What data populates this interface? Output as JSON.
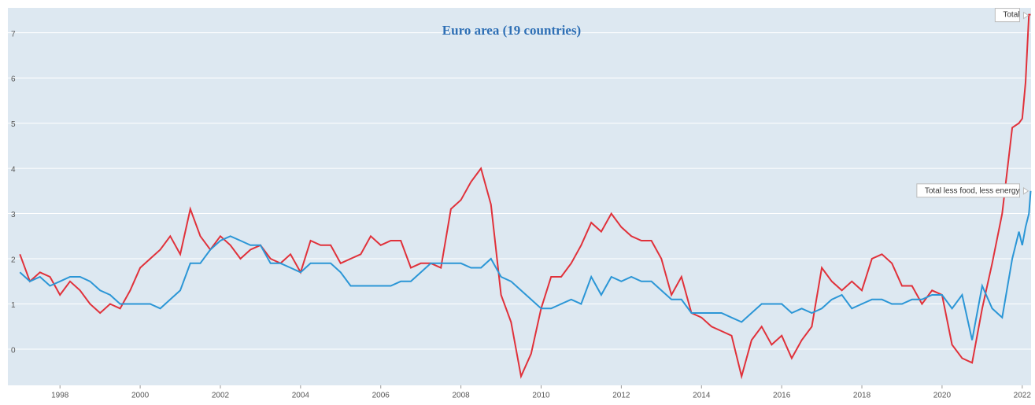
{
  "chart_data": {
    "type": "line",
    "title": "Euro area (19 countries)",
    "x": [
      1997,
      1997.25,
      1997.5,
      1997.75,
      1998,
      1998.25,
      1998.5,
      1998.75,
      1999,
      1999.25,
      1999.5,
      1999.75,
      2000,
      2000.25,
      2000.5,
      2000.75,
      2001,
      2001.25,
      2001.5,
      2001.75,
      2002,
      2002.25,
      2002.5,
      2002.75,
      2003,
      2003.25,
      2003.5,
      2003.75,
      2004,
      2004.25,
      2004.5,
      2004.75,
      2005,
      2005.25,
      2005.5,
      2005.75,
      2006,
      2006.25,
      2006.5,
      2006.75,
      2007,
      2007.25,
      2007.5,
      2007.75,
      2008,
      2008.25,
      2008.5,
      2008.75,
      2009,
      2009.25,
      2009.5,
      2009.75,
      2010,
      2010.25,
      2010.5,
      2010.75,
      2011,
      2011.25,
      2011.5,
      2011.75,
      2012,
      2012.25,
      2012.5,
      2012.75,
      2013,
      2013.25,
      2013.5,
      2013.75,
      2014,
      2014.25,
      2014.5,
      2014.75,
      2015,
      2015.25,
      2015.5,
      2015.75,
      2016,
      2016.25,
      2016.5,
      2016.75,
      2017,
      2017.25,
      2017.5,
      2017.75,
      2018,
      2018.25,
      2018.5,
      2018.75,
      2019,
      2019.25,
      2019.5,
      2019.75,
      2020,
      2020.25,
      2020.5,
      2020.75,
      2021,
      2021.25,
      2021.5,
      2021.75,
      2021.917,
      2022,
      2022.083,
      2022.167,
      2022.21
    ],
    "series": [
      {
        "name": "Total",
        "color": "#e0313a",
        "values": [
          2.1,
          1.5,
          1.7,
          1.6,
          1.2,
          1.5,
          1.3,
          1.0,
          0.8,
          1.0,
          0.9,
          1.3,
          1.8,
          2.0,
          2.2,
          2.5,
          2.1,
          3.1,
          2.5,
          2.2,
          2.5,
          2.3,
          2.0,
          2.2,
          2.3,
          2.0,
          1.9,
          2.1,
          1.7,
          2.4,
          2.3,
          2.3,
          1.9,
          2.0,
          2.1,
          2.5,
          2.3,
          2.4,
          2.4,
          1.8,
          1.9,
          1.9,
          1.8,
          3.1,
          3.3,
          3.7,
          4.0,
          3.2,
          1.2,
          0.6,
          -0.6,
          -0.1,
          0.9,
          1.6,
          1.6,
          1.9,
          2.3,
          2.8,
          2.6,
          3.0,
          2.7,
          2.5,
          2.4,
          2.4,
          2.0,
          1.2,
          1.6,
          0.8,
          0.7,
          0.5,
          0.4,
          0.3,
          -0.6,
          0.2,
          0.5,
          0.1,
          0.3,
          -0.2,
          0.2,
          0.5,
          1.8,
          1.5,
          1.3,
          1.5,
          1.3,
          2.0,
          2.1,
          1.9,
          1.4,
          1.4,
          1.0,
          1.3,
          1.2,
          0.1,
          -0.2,
          -0.3,
          0.9,
          1.9,
          3.0,
          4.9,
          5.0,
          5.1,
          5.9,
          7.4,
          7.4
        ]
      },
      {
        "name": "Total less food, less energy",
        "color": "#2b96d6",
        "values": [
          1.7,
          1.5,
          1.6,
          1.4,
          1.5,
          1.6,
          1.6,
          1.5,
          1.3,
          1.2,
          1.0,
          1.0,
          1.0,
          1.0,
          0.9,
          1.1,
          1.3,
          1.9,
          1.9,
          2.2,
          2.4,
          2.5,
          2.4,
          2.3,
          2.3,
          1.9,
          1.9,
          1.8,
          1.7,
          1.9,
          1.9,
          1.9,
          1.7,
          1.4,
          1.4,
          1.4,
          1.4,
          1.4,
          1.5,
          1.5,
          1.7,
          1.9,
          1.9,
          1.9,
          1.9,
          1.8,
          1.8,
          2.0,
          1.6,
          1.5,
          1.3,
          1.1,
          0.9,
          0.9,
          1.0,
          1.1,
          1.0,
          1.6,
          1.2,
          1.6,
          1.5,
          1.6,
          1.5,
          1.5,
          1.3,
          1.1,
          1.1,
          0.8,
          0.8,
          0.8,
          0.8,
          0.7,
          0.6,
          0.8,
          1.0,
          1.0,
          1.0,
          0.8,
          0.9,
          0.8,
          0.9,
          1.1,
          1.2,
          0.9,
          1.0,
          1.1,
          1.1,
          1.0,
          1.0,
          1.1,
          1.1,
          1.2,
          1.2,
          0.9,
          1.2,
          0.2,
          1.4,
          0.9,
          0.7,
          2.0,
          2.6,
          2.3,
          2.7,
          3.0,
          3.5
        ]
      }
    ],
    "xlim": [
      1996.7,
      2022.22
    ],
    "xticks": [
      1998,
      2000,
      2002,
      2004,
      2006,
      2008,
      2010,
      2012,
      2014,
      2016,
      2018,
      2020,
      2022
    ],
    "ylim": [
      -0.8,
      7.55
    ],
    "yticks": [
      0,
      1,
      2,
      3,
      4,
      5,
      6,
      7
    ],
    "grid": true
  }
}
